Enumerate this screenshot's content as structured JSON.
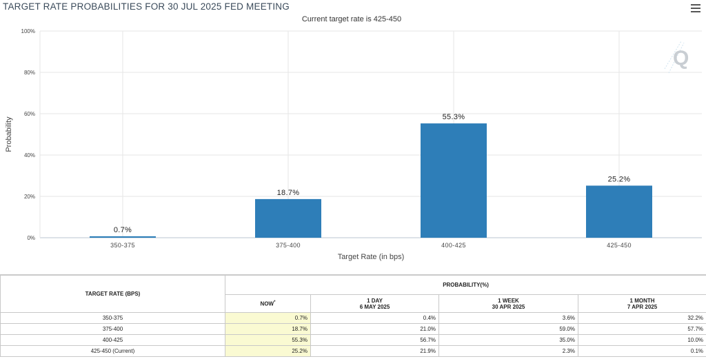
{
  "chart": {
    "title": "TARGET RATE PROBABILITIES FOR 30 JUL 2025 FED MEETING",
    "subtitle": "Current target rate is 425-450",
    "menu_icon": "hamburger-menu-icon",
    "logo_icon": "q-logo-icon"
  },
  "chart_data": {
    "type": "bar",
    "title": "TARGET RATE PROBABILITIES FOR 30 JUL 2025 FED MEETING",
    "subtitle": "Current target rate is 425-450",
    "categories": [
      "350-375",
      "375-400",
      "400-425",
      "425-450"
    ],
    "values": [
      0.7,
      18.7,
      55.3,
      25.2
    ],
    "data_labels": [
      "0.7%",
      "18.7%",
      "55.3%",
      "25.2%"
    ],
    "xlabel": "Target Rate (in bps)",
    "ylabel": "Probability",
    "ylim": [
      0,
      100
    ],
    "yticks": [
      "0%",
      "20%",
      "40%",
      "60%",
      "80%",
      "100%"
    ],
    "ytick_values": [
      0,
      20,
      40,
      60,
      80,
      100
    ],
    "grid": true,
    "bar_color": "#2e7eb8"
  },
  "table": {
    "header_rate": "TARGET RATE (BPS)",
    "header_prob": "PROBABILITY(%)",
    "columns": [
      {
        "line1": "NOW",
        "line2": ""
      },
      {
        "line1": "1 DAY",
        "line2": "6 MAY 2025"
      },
      {
        "line1": "1 WEEK",
        "line2": "30 APR 2025"
      },
      {
        "line1": "1 MONTH",
        "line2": "7 APR 2025"
      }
    ],
    "now_marker": "*",
    "rows": [
      {
        "rate": "350-375",
        "now": "0.7%",
        "day": "0.4%",
        "week": "3.6%",
        "month": "32.2%"
      },
      {
        "rate": "375-400",
        "now": "18.7%",
        "day": "21.0%",
        "week": "59.0%",
        "month": "57.7%"
      },
      {
        "rate": "400-425",
        "now": "55.3%",
        "day": "56.7%",
        "week": "35.0%",
        "month": "10.0%"
      },
      {
        "rate": "425-450 (Current)",
        "now": "25.2%",
        "day": "21.9%",
        "week": "2.3%",
        "month": "0.1%"
      }
    ]
  }
}
